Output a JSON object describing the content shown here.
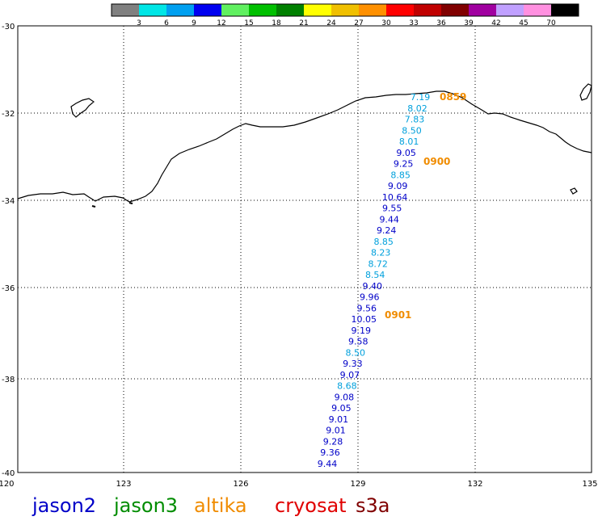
{
  "colorbar": {
    "labels": [
      "3",
      "6",
      "9",
      "12",
      "15",
      "18",
      "21",
      "24",
      "27",
      "30",
      "33",
      "36",
      "39",
      "42",
      "45",
      "70"
    ],
    "colors": [
      "#808080",
      "#00e6e6",
      "#00a0f0",
      "#0000f0",
      "#60f060",
      "#00c000",
      "#008000",
      "#ffff00",
      "#f0c000",
      "#ff9000",
      "#ff0000",
      "#c00000",
      "#800000",
      "#a000a0",
      "#c0a0ff",
      "#ff90e0",
      "#000000"
    ]
  },
  "axes": {
    "x_ticks": [
      "120",
      "123",
      "126",
      "129",
      "132",
      "135"
    ],
    "y_ticks": [
      "-30",
      "-32",
      "-34",
      "-36",
      "-38",
      "-40"
    ]
  },
  "time_labels": [
    {
      "text": "0859",
      "color": "#f08c00"
    },
    {
      "text": "0900",
      "color": "#f08c00"
    },
    {
      "text": "0901",
      "color": "#f08c00"
    }
  ],
  "track_values": [
    {
      "text": "7.19",
      "color": "#00a0dc"
    },
    {
      "text": "8.02",
      "color": "#00a0dc"
    },
    {
      "text": "7.83",
      "color": "#00a0dc"
    },
    {
      "text": "8.50",
      "color": "#00a0dc"
    },
    {
      "text": "8.01",
      "color": "#00a0dc"
    },
    {
      "text": "9.05",
      "color": "#0000c8"
    },
    {
      "text": "9.25",
      "color": "#0000c8"
    },
    {
      "text": "8.85",
      "color": "#00a0dc"
    },
    {
      "text": "9.09",
      "color": "#0000c8"
    },
    {
      "text": "10.64",
      "color": "#0000c8"
    },
    {
      "text": "9.55",
      "color": "#0000c8"
    },
    {
      "text": "9.44",
      "color": "#0000c8"
    },
    {
      "text": "9.24",
      "color": "#0000c8"
    },
    {
      "text": "8.85",
      "color": "#00a0dc"
    },
    {
      "text": "8.23",
      "color": "#00a0dc"
    },
    {
      "text": "8.72",
      "color": "#00a0dc"
    },
    {
      "text": "8.54",
      "color": "#00a0dc"
    },
    {
      "text": "9.40",
      "color": "#0000c8"
    },
    {
      "text": "9.96",
      "color": "#0000c8"
    },
    {
      "text": "9.56",
      "color": "#0000c8"
    },
    {
      "text": "10.05",
      "color": "#0000c8"
    },
    {
      "text": "9.19",
      "color": "#0000c8"
    },
    {
      "text": "9.58",
      "color": "#0000c8"
    },
    {
      "text": "8.50",
      "color": "#00a0dc"
    },
    {
      "text": "9.33",
      "color": "#0000c8"
    },
    {
      "text": "9.07",
      "color": "#0000c8"
    },
    {
      "text": "8.68",
      "color": "#00a0dc"
    },
    {
      "text": "9.08",
      "color": "#0000c8"
    },
    {
      "text": "9.05",
      "color": "#0000c8"
    },
    {
      "text": "9.01",
      "color": "#0000c8"
    },
    {
      "text": "9.01",
      "color": "#0000c8"
    },
    {
      "text": "9.28",
      "color": "#0000c8"
    },
    {
      "text": "9.36",
      "color": "#0000c8"
    },
    {
      "text": "9.44",
      "color": "#0000c8"
    }
  ],
  "legend": [
    {
      "name": "jason2",
      "color": "#0000c8"
    },
    {
      "name": "jason3",
      "color": "#008c00"
    },
    {
      "name": "altika",
      "color": "#f08c00"
    },
    {
      "name": "cryosat",
      "color": "#e00000"
    },
    {
      "name": "s3a",
      "color": "#800000"
    }
  ]
}
